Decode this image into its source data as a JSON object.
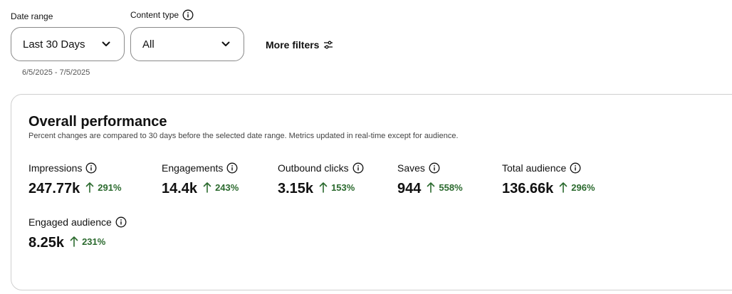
{
  "filters": {
    "date_range": {
      "label": "Date range",
      "value": "Last 30 Days",
      "sub": "6/5/2025 - 7/5/2025"
    },
    "content_type": {
      "label": "Content type",
      "value": "All"
    },
    "more_filters_label": "More filters"
  },
  "performance": {
    "title": "Overall performance",
    "description": "Percent changes are compared to 30 days before the selected date range. Metrics updated in real-time except for audience.",
    "metrics": [
      {
        "label": "Impressions",
        "value": "247.77k",
        "change": "291%"
      },
      {
        "label": "Engagements",
        "value": "14.4k",
        "change": "243%"
      },
      {
        "label": "Outbound clicks",
        "value": "3.15k",
        "change": "153%"
      },
      {
        "label": "Saves",
        "value": "944",
        "change": "558%"
      },
      {
        "label": "Total audience",
        "value": "136.66k",
        "change": "296%"
      },
      {
        "label": "Engaged audience",
        "value": "8.25k",
        "change": "231%"
      }
    ]
  },
  "colors": {
    "positive": "#2b6a2e",
    "border": "#cfcfcf",
    "text": "#111111"
  },
  "icons": {
    "info": "info-icon",
    "chevron": "chevron-down-icon",
    "filters": "sliders-icon",
    "trend": "arrow-up-icon"
  }
}
